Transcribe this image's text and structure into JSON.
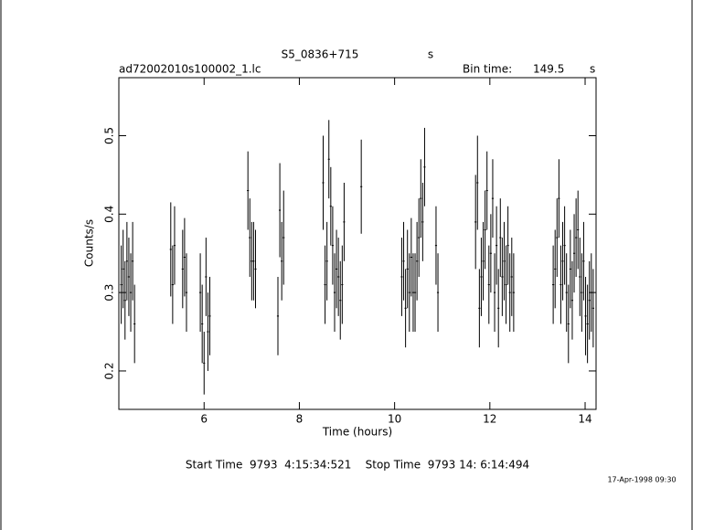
{
  "chart_data": {
    "type": "errorbar",
    "title": "S5_0836+715",
    "title_unit": "s",
    "filename": "ad72002010s100002_1.lc",
    "bin_label": "Bin time:",
    "bin_value": "149.5",
    "bin_unit": "s",
    "xlabel": "Time (hours)",
    "ylabel": "Counts/s",
    "footer": "Start Time  9793  4:15:34:521    Stop Time  9793 14: 6:14:494",
    "date": "17-Apr-1998 09:30",
    "xlim": [
      4.21,
      14.23
    ],
    "ylim": [
      0.151,
      0.574
    ],
    "xticks": [
      6,
      8,
      10,
      12,
      14
    ],
    "yticks": [
      0.2,
      0.3,
      0.4,
      0.5
    ],
    "color": "#000000",
    "x": [
      4.26,
      4.3,
      4.34,
      4.38,
      4.42,
      4.46,
      4.5,
      4.54,
      5.3,
      5.34,
      5.38,
      5.55,
      5.59,
      5.63,
      5.92,
      5.96,
      6.0,
      6.04,
      6.08,
      6.12,
      6.92,
      6.96,
      7.0,
      7.04,
      7.08,
      7.55,
      7.59,
      7.63,
      7.67,
      8.5,
      8.54,
      8.58,
      8.62,
      8.66,
      8.7,
      8.74,
      8.78,
      8.82,
      8.86,
      8.9,
      8.94,
      9.3,
      10.15,
      10.19,
      10.23,
      10.27,
      10.31,
      10.35,
      10.39,
      10.43,
      10.47,
      10.51,
      10.55,
      10.59,
      10.63,
      10.87,
      10.91,
      11.7,
      11.74,
      11.78,
      11.82,
      11.86,
      11.9,
      11.94,
      11.98,
      12.02,
      12.06,
      12.1,
      12.14,
      12.18,
      12.22,
      12.26,
      12.3,
      12.34,
      12.38,
      12.42,
      12.46,
      12.5,
      13.33,
      13.37,
      13.41,
      13.45,
      13.49,
      13.53,
      13.57,
      13.61,
      13.65,
      13.69,
      13.73,
      13.77,
      13.81,
      13.85,
      13.89,
      13.93,
      13.97,
      14.01,
      14.05,
      14.09,
      14.13,
      14.17
    ],
    "values": [
      0.31,
      0.33,
      0.29,
      0.34,
      0.32,
      0.3,
      0.34,
      0.26,
      0.355,
      0.31,
      0.36,
      0.33,
      0.345,
      0.3,
      0.3,
      0.26,
      0.21,
      0.32,
      0.25,
      0.27,
      0.43,
      0.37,
      0.34,
      0.34,
      0.33,
      0.27,
      0.405,
      0.34,
      0.37,
      0.44,
      0.31,
      0.34,
      0.47,
      0.41,
      0.36,
      0.3,
      0.33,
      0.32,
      0.29,
      0.31,
      0.39,
      0.435,
      0.32,
      0.34,
      0.28,
      0.33,
      0.3,
      0.345,
      0.3,
      0.3,
      0.34,
      0.37,
      0.42,
      0.39,
      0.46,
      0.36,
      0.3,
      0.39,
      0.44,
      0.28,
      0.32,
      0.34,
      0.38,
      0.43,
      0.31,
      0.35,
      0.42,
      0.3,
      0.36,
      0.28,
      0.37,
      0.32,
      0.34,
      0.31,
      0.36,
      0.3,
      0.32,
      0.3,
      0.31,
      0.33,
      0.37,
      0.42,
      0.31,
      0.34,
      0.36,
      0.3,
      0.26,
      0.33,
      0.29,
      0.35,
      0.37,
      0.38,
      0.32,
      0.3,
      0.34,
      0.27,
      0.26,
      0.29,
      0.3,
      0.28
    ],
    "errors": [
      0.05,
      0.05,
      0.05,
      0.05,
      0.05,
      0.05,
      0.05,
      0.05,
      0.06,
      0.05,
      0.05,
      0.05,
      0.05,
      0.05,
      0.05,
      0.05,
      0.04,
      0.05,
      0.05,
      0.05,
      0.05,
      0.05,
      0.05,
      0.05,
      0.05,
      0.05,
      0.06,
      0.05,
      0.06,
      0.06,
      0.05,
      0.05,
      0.05,
      0.05,
      0.05,
      0.05,
      0.05,
      0.05,
      0.05,
      0.05,
      0.05,
      0.06,
      0.05,
      0.05,
      0.05,
      0.05,
      0.05,
      0.05,
      0.05,
      0.05,
      0.05,
      0.05,
      0.05,
      0.05,
      0.05,
      0.05,
      0.05,
      0.06,
      0.06,
      0.05,
      0.05,
      0.05,
      0.05,
      0.05,
      0.05,
      0.05,
      0.05,
      0.05,
      0.05,
      0.05,
      0.05,
      0.05,
      0.05,
      0.05,
      0.05,
      0.05,
      0.05,
      0.05,
      0.05,
      0.05,
      0.05,
      0.05,
      0.05,
      0.05,
      0.05,
      0.05,
      0.05,
      0.05,
      0.05,
      0.05,
      0.05,
      0.05,
      0.05,
      0.05,
      0.05,
      0.05,
      0.05,
      0.05,
      0.05,
      0.05
    ]
  }
}
